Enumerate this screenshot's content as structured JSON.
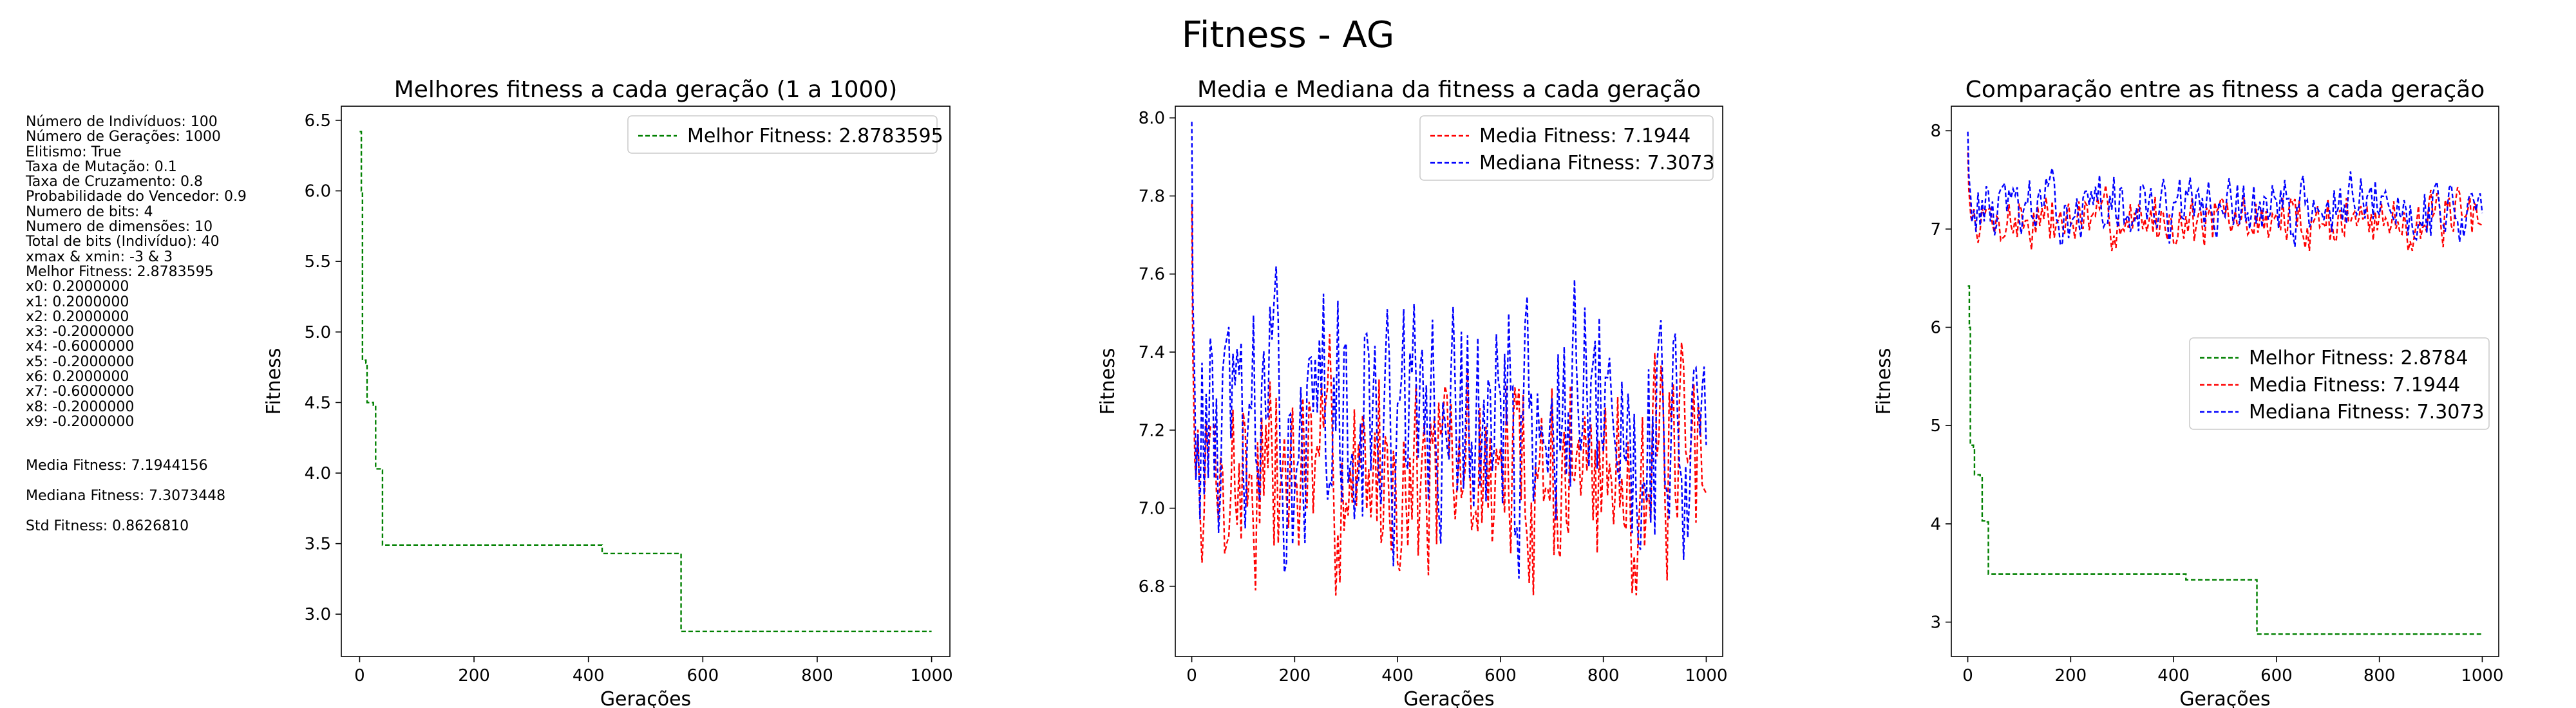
{
  "suptitle": "Fitness - AG",
  "info_lines": [
    "Número de Indivíduos: 100",
    "Número de Gerações: 1000",
    "Elitismo: True",
    "Taxa de Mutação: 0.1",
    "Taxa de Cruzamento: 0.8",
    "Probabilidade do Vencedor: 0.9",
    "Numero de bits: 4",
    "Numero de dimensões: 10",
    "Total de bits (Indivíduo): 40",
    "xmax & xmin: -3 & 3",
    "Melhor Fitness: 2.8783595",
    "x0: 0.2000000",
    "x1: 0.2000000",
    "x2: 0.2000000",
    "x3: -0.2000000",
    "x4: -0.6000000",
    "x5: -0.2000000",
    "x6: 0.2000000",
    "x7: -0.6000000",
    "x8: -0.2000000",
    "x9: -0.2000000"
  ],
  "stats": [
    "Media Fitness: 7.1944156",
    "Mediana Fitness: 7.3073448",
    "Std Fitness: 0.8626810"
  ],
  "colors": {
    "best": "#008000",
    "mean": "#ff0000",
    "median": "#0000ff"
  },
  "chart_data": [
    {
      "type": "line",
      "title": "Melhores fitness a cada geração (1 a 1000)",
      "xlabel": "Gerações",
      "ylabel": "Fitness",
      "xlim": [
        -32,
        1032
      ],
      "ylim": [
        2.7,
        6.6
      ],
      "xticks": [
        0,
        200,
        400,
        600,
        800,
        1000
      ],
      "yticks": [
        3.0,
        3.5,
        4.0,
        4.5,
        5.0,
        5.5,
        6.0,
        6.5
      ],
      "ytick_labels": [
        "3.0",
        "3.5",
        "4.0",
        "4.5",
        "5.0",
        "5.5",
        "6.0",
        "6.5"
      ],
      "grid": false,
      "legend_position": "top-right",
      "series": [
        {
          "name": "Melhor Fitness: 2.8783595",
          "color": "#008000",
          "style": "step",
          "points": [
            [
              0,
              6.42
            ],
            [
              3,
              6.0
            ],
            [
              5,
              4.8
            ],
            [
              11,
              4.78
            ],
            [
              13,
              4.5
            ],
            [
              24,
              4.48
            ],
            [
              28,
              4.03
            ],
            [
              38,
              4.02
            ],
            [
              40,
              3.49
            ],
            [
              420,
              3.49
            ],
            [
              424,
              3.43
            ],
            [
              560,
              3.43
            ],
            [
              562,
              2.878
            ],
            [
              1000,
              2.878
            ]
          ]
        }
      ]
    },
    {
      "type": "line",
      "title": "Media e Mediana da fitness a cada geração",
      "xlabel": "Gerações",
      "ylabel": "Fitness",
      "xlim": [
        -32,
        1032
      ],
      "ylim": [
        6.62,
        8.03
      ],
      "xticks": [
        0,
        200,
        400,
        600,
        800,
        1000
      ],
      "yticks": [
        6.8,
        7.0,
        7.2,
        7.4,
        7.6,
        7.8,
        8.0
      ],
      "ytick_labels": [
        "6.8",
        "7.0",
        "7.2",
        "7.4",
        "7.6",
        "7.8",
        "8.0"
      ],
      "grid": false,
      "legend_position": "top-right",
      "series": [
        {
          "name": "Media Fitness: 7.1944",
          "color": "#ff0000",
          "style": "noisy",
          "center": 7.09,
          "amplitude": 0.32,
          "seed": 7,
          "start": [
            [
              0,
              7.78
            ],
            [
              2,
              7.4
            ],
            [
              6,
              7.12
            ]
          ],
          "points": [
            [
              0,
              7.78
            ],
            [
              2,
              7.4
            ],
            [
              6,
              7.12
            ],
            [
              20,
              6.95
            ],
            [
              40,
              7.2
            ],
            [
              80,
              6.75
            ],
            [
              120,
              7.2
            ],
            [
              180,
              6.85
            ],
            [
              260,
              6.72
            ],
            [
              300,
              6.7
            ],
            [
              360,
              7.25
            ],
            [
              420,
              6.95
            ],
            [
              480,
              7.2
            ],
            [
              540,
              6.85
            ],
            [
              600,
              7.3
            ],
            [
              660,
              6.9
            ],
            [
              720,
              7.35
            ],
            [
              780,
              6.95
            ],
            [
              860,
              7.2
            ],
            [
              900,
              6.85
            ],
            [
              960,
              7.3
            ],
            [
              1000,
              7.0
            ]
          ]
        },
        {
          "name": "Mediana Fitness: 7.3073",
          "color": "#0000ff",
          "style": "noisy",
          "center": 7.21,
          "amplitude": 0.38,
          "seed": 13,
          "start": [
            [
              0,
              7.99
            ],
            [
              2,
              7.55
            ],
            [
              6,
              7.3
            ]
          ],
          "points": [
            [
              0,
              7.99
            ],
            [
              2,
              7.55
            ],
            [
              6,
              7.3
            ],
            [
              20,
              7.05
            ],
            [
              40,
              7.4
            ],
            [
              80,
              6.85
            ],
            [
              120,
              7.4
            ],
            [
              180,
              7.0
            ],
            [
              260,
              7.3
            ],
            [
              300,
              7.05
            ],
            [
              360,
              7.4
            ],
            [
              420,
              7.0
            ],
            [
              470,
              7.5
            ],
            [
              540,
              6.95
            ],
            [
              600,
              7.45
            ],
            [
              660,
              7.05
            ],
            [
              700,
              7.55
            ],
            [
              780,
              7.1
            ],
            [
              860,
              7.6
            ],
            [
              900,
              7.0
            ],
            [
              960,
              7.45
            ],
            [
              1000,
              7.1
            ]
          ]
        }
      ]
    },
    {
      "type": "line",
      "title": "Comparação entre as fitness a cada geração",
      "xlabel": "Gerações",
      "ylabel": "Fitness",
      "xlim": [
        -32,
        1032
      ],
      "ylim": [
        2.65,
        8.25
      ],
      "xticks": [
        0,
        200,
        400,
        600,
        800,
        1000
      ],
      "yticks": [
        3,
        4,
        5,
        6,
        7,
        8
      ],
      "ytick_labels": [
        "3",
        "4",
        "5",
        "6",
        "7",
        "8"
      ],
      "grid": false,
      "legend_position": "center-right",
      "series": [
        {
          "name": "Melhor Fitness: 2.8784",
          "color": "#008000",
          "style": "step",
          "points": [
            [
              0,
              6.42
            ],
            [
              3,
              6.0
            ],
            [
              5,
              4.8
            ],
            [
              11,
              4.78
            ],
            [
              13,
              4.5
            ],
            [
              24,
              4.48
            ],
            [
              28,
              4.03
            ],
            [
              38,
              4.02
            ],
            [
              40,
              3.49
            ],
            [
              420,
              3.49
            ],
            [
              424,
              3.43
            ],
            [
              560,
              3.43
            ],
            [
              562,
              2.878
            ],
            [
              1000,
              2.878
            ]
          ]
        },
        {
          "name": "Media Fitness: 7.1944",
          "color": "#ff0000",
          "style": "noisy",
          "center": 7.09,
          "amplitude": 0.32,
          "seed": 7,
          "start": [
            [
              0,
              7.78
            ],
            [
              2,
              7.4
            ],
            [
              6,
              7.12
            ]
          ]
        },
        {
          "name": "Mediana Fitness: 7.3073",
          "color": "#0000ff",
          "style": "noisy",
          "center": 7.21,
          "amplitude": 0.38,
          "seed": 13,
          "start": [
            [
              0,
              7.99
            ],
            [
              2,
              7.55
            ],
            [
              6,
              7.3
            ]
          ]
        }
      ]
    }
  ]
}
